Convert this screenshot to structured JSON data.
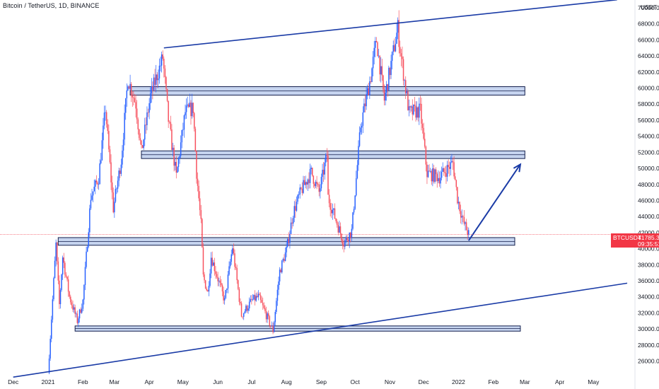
{
  "header": {
    "title": "Bitcoin / TetherUS, 1D, BINANCE",
    "currency": "USDT"
  },
  "price_tag": {
    "symbol": "BTCUSDT",
    "price": "41785.35",
    "countdown": "09:35:51"
  },
  "colors": {
    "up": "#2962ff",
    "down": "#f7525f",
    "trendline": "#1a3ba6",
    "zone_fill": "#c6d4ef",
    "zone_border": "#131f4d",
    "price_line": "#f23645"
  },
  "chart_data": {
    "type": "candlestick",
    "symbol": "BTCUSDT",
    "interval": "1D",
    "exchange": "BINANCE",
    "last_price": 41785.35,
    "x_tick_labels": [
      "Dec",
      "2021",
      "Feb",
      "Mar",
      "Apr",
      "May",
      "Jun",
      "Jul",
      "Aug",
      "Sep",
      "Oct",
      "Nov",
      "Dec",
      "2022",
      "Feb",
      "Mar",
      "Apr",
      "May"
    ],
    "x_tick_months": [
      "2020-12",
      "2021-01",
      "2021-02",
      "2021-03",
      "2021-04",
      "2021-05",
      "2021-06",
      "2021-07",
      "2021-08",
      "2021-09",
      "2021-10",
      "2021-11",
      "2021-12",
      "2022-01",
      "2022-02",
      "2022-03",
      "2022-04",
      "2022-05"
    ],
    "y_ticks": [
      26000,
      28000,
      30000,
      32000,
      34000,
      36000,
      38000,
      40000,
      42000,
      44000,
      46000,
      48000,
      50000,
      52000,
      54000,
      56000,
      58000,
      60000,
      62000,
      64000,
      66000,
      68000,
      70000
    ],
    "ylim": [
      24000,
      71000
    ],
    "close_path": [
      [
        "2021-01-01",
        24500
      ],
      [
        "2021-01-08",
        40500
      ],
      [
        "2021-01-11",
        33000
      ],
      [
        "2021-01-14",
        39000
      ],
      [
        "2021-01-20",
        34000
      ],
      [
        "2021-01-27",
        31000
      ],
      [
        "2021-02-01",
        33500
      ],
      [
        "2021-02-08",
        46500
      ],
      [
        "2021-02-15",
        48800
      ],
      [
        "2021-02-21",
        57500
      ],
      [
        "2021-02-28",
        45000
      ],
      [
        "2021-03-07",
        51000
      ],
      [
        "2021-03-13",
        61200
      ],
      [
        "2021-03-20",
        58000
      ],
      [
        "2021-03-25",
        52000
      ],
      [
        "2021-04-02",
        59000
      ],
      [
        "2021-04-13",
        63800
      ],
      [
        "2021-04-18",
        56000
      ],
      [
        "2021-04-25",
        49000
      ],
      [
        "2021-05-03",
        57000
      ],
      [
        "2021-05-10",
        57500
      ],
      [
        "2021-05-13",
        49500
      ],
      [
        "2021-05-17",
        43000
      ],
      [
        "2021-05-19",
        36500
      ],
      [
        "2021-05-23",
        34500
      ],
      [
        "2021-05-26",
        39000
      ],
      [
        "2021-06-07",
        33500
      ],
      [
        "2021-06-14",
        40200
      ],
      [
        "2021-06-22",
        31700
      ],
      [
        "2021-07-01",
        33500
      ],
      [
        "2021-07-07",
        34000
      ],
      [
        "2021-07-20",
        29800
      ],
      [
        "2021-07-26",
        37200
      ],
      [
        "2021-08-01",
        39800
      ],
      [
        "2021-08-07",
        44500
      ],
      [
        "2021-08-14",
        47200
      ],
      [
        "2021-08-23",
        49500
      ],
      [
        "2021-08-30",
        47000
      ],
      [
        "2021-09-06",
        51700
      ],
      [
        "2021-09-07",
        46400
      ],
      [
        "2021-09-21",
        40700
      ],
      [
        "2021-09-28",
        42200
      ],
      [
        "2021-10-06",
        55300
      ],
      [
        "2021-10-15",
        61500
      ],
      [
        "2021-10-20",
        66000
      ],
      [
        "2021-10-27",
        58500
      ],
      [
        "2021-11-08",
        67500
      ],
      [
        "2021-11-10",
        64900
      ],
      [
        "2021-11-18",
        56900
      ],
      [
        "2021-11-24",
        57100
      ],
      [
        "2021-11-28",
        57200
      ],
      [
        "2021-12-04",
        49400
      ],
      [
        "2021-12-15",
        48900
      ],
      [
        "2021-12-27",
        50700
      ],
      [
        "2021-12-31",
        46300
      ],
      [
        "2022-01-05",
        43400
      ],
      [
        "2022-01-10",
        41785.35
      ]
    ],
    "annotations": {
      "horizontal_zones": [
        {
          "from": "2021-03-15",
          "to": "2022-03-01",
          "low": 59300,
          "high": 60000
        },
        {
          "from": "2021-03-25",
          "to": "2022-03-01",
          "low": 51400,
          "high": 52000
        },
        {
          "from": "2021-01-10",
          "to": "2022-02-20",
          "low": 40600,
          "high": 41200
        },
        {
          "from": "2021-01-25",
          "to": "2022-02-25",
          "low": 29900,
          "high": 30200
        }
      ],
      "trendlines": [
        {
          "from": [
            "2021-04-14",
            65000
          ],
          "to": [
            "2022-05-22",
            71000
          ]
        },
        {
          "from": [
            "2020-12-01",
            24000
          ],
          "to": [
            "2022-05-31",
            35700
          ]
        }
      ],
      "projection_arrow": {
        "from": [
          "2022-01-10",
          41000
        ],
        "to": [
          "2022-02-25",
          50500
        ]
      }
    }
  }
}
